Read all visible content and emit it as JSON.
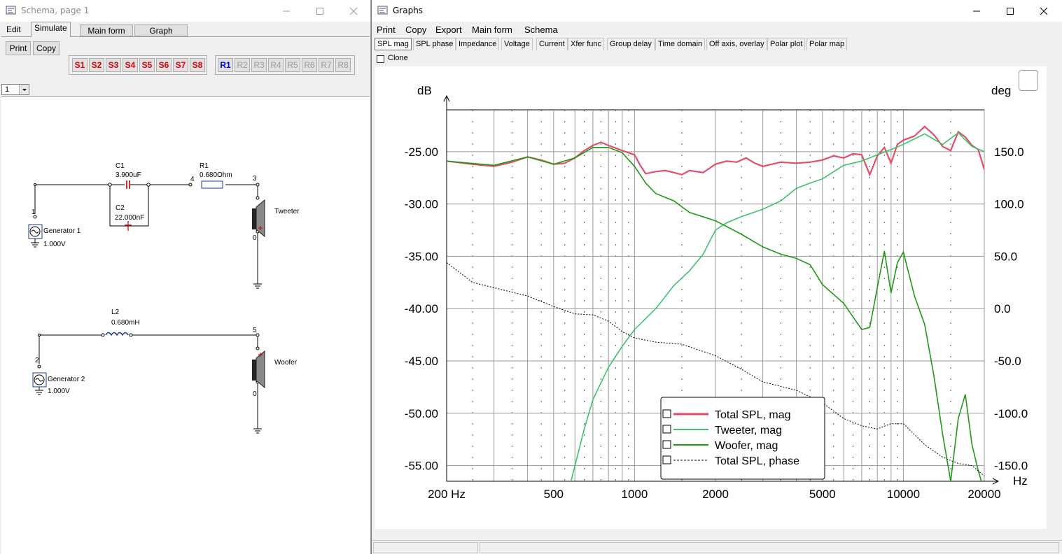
{
  "schema_window": {
    "title": "Schema, page 1",
    "tabs": [
      "Edit",
      "Simulate"
    ],
    "active_tab": "Simulate",
    "buttons": {
      "main_form": "Main form",
      "graph": "Graph",
      "print": "Print",
      "copy": "Copy"
    },
    "s_buttons": [
      "S1",
      "S2",
      "S3",
      "S4",
      "S5",
      "S6",
      "S7",
      "S8"
    ],
    "r_buttons": [
      "R1",
      "R2",
      "R3",
      "R4",
      "R5",
      "R6",
      "R7",
      "R8"
    ],
    "page_select": "1",
    "components": {
      "c1_name": "C1",
      "c1_value": "3.900uF",
      "c2_name": "C2",
      "c2_value": "22.000nF",
      "r1_name": "R1",
      "r1_value": "0.680Ohm",
      "l2_name": "L2",
      "l2_value": "0.680mH",
      "gen1_name": "Generator 1",
      "gen1_value": "1.000V",
      "gen2_name": "Generator 2",
      "gen2_value": "1.000V",
      "tweeter": "Tweeter",
      "woofer": "Woofer"
    },
    "nodes": {
      "n1": "1",
      "n2": "2",
      "n3": "3",
      "n4": "4",
      "n5": "5",
      "n0a": "0",
      "n0b": "0"
    }
  },
  "graphs_window": {
    "title": "Graphs",
    "menu": [
      "Print",
      "Copy",
      "Export",
      "Main form",
      "Schema"
    ],
    "tabs": [
      "SPL mag",
      "SPL phase",
      "Impedance",
      "Voltage",
      "Current",
      "Xfer func",
      "Group delay",
      "Time domain",
      "Off axis, overlay",
      "Polar plot",
      "Polar map"
    ],
    "active_tab": "SPL mag",
    "clone_label": "Clone"
  },
  "chart_data": {
    "type": "line",
    "x_scale": "log",
    "x_unit_label": "Hz",
    "xlim": [
      200,
      20000
    ],
    "x_tick_labels": [
      {
        "v": 200,
        "t": "200 Hz"
      },
      {
        "v": 500,
        "t": "500"
      },
      {
        "v": 1000,
        "t": "1000"
      },
      {
        "v": 2000,
        "t": "2000"
      },
      {
        "v": 5000,
        "t": "5000"
      },
      {
        "v": 10000,
        "t": "10000"
      },
      {
        "v": 20000,
        "t": "20000"
      }
    ],
    "y_left_label": "dB",
    "ylim_left": [
      -56.5,
      -21
    ],
    "y_left_ticks": [
      -25,
      -30,
      -35,
      -40,
      -45,
      -50,
      -55
    ],
    "y_left_tick_labels": [
      "-25.00",
      "-30.00",
      "-35.00",
      "-40.00",
      "-45.00",
      "-50.00",
      "-55.00"
    ],
    "y_right_label": "deg",
    "y_right_ticks": [
      150,
      100,
      50,
      0,
      -50,
      -100,
      -150
    ],
    "y_right_tick_labels": [
      "150.0",
      "100.0",
      "50.0",
      "0.0",
      "-50.0",
      "-100.0",
      "-150.0"
    ],
    "grid": true,
    "legend_position": "bottom-center",
    "series": [
      {
        "name": "Total SPL, mag",
        "color": "#e0506a",
        "axis": "left",
        "points": [
          [
            200,
            -25.9
          ],
          [
            250,
            -26.2
          ],
          [
            300,
            -26.4
          ],
          [
            350,
            -26.0
          ],
          [
            400,
            -25.5
          ],
          [
            450,
            -25.8
          ],
          [
            500,
            -26.2
          ],
          [
            550,
            -26.1
          ],
          [
            600,
            -25.6
          ],
          [
            650,
            -24.9
          ],
          [
            700,
            -24.4
          ],
          [
            750,
            -24.1
          ],
          [
            800,
            -24.4
          ],
          [
            900,
            -24.9
          ],
          [
            1000,
            -25.3
          ],
          [
            1050,
            -26.3
          ],
          [
            1100,
            -27.1
          ],
          [
            1200,
            -26.9
          ],
          [
            1300,
            -26.8
          ],
          [
            1400,
            -27.0
          ],
          [
            1500,
            -27.2
          ],
          [
            1600,
            -26.8
          ],
          [
            1800,
            -27.0
          ],
          [
            2000,
            -26.2
          ],
          [
            2200,
            -25.9
          ],
          [
            2400,
            -26.0
          ],
          [
            2600,
            -25.6
          ],
          [
            2800,
            -26.1
          ],
          [
            3000,
            -26.4
          ],
          [
            3500,
            -26.0
          ],
          [
            4000,
            -26.1
          ],
          [
            4500,
            -26.0
          ],
          [
            5000,
            -25.8
          ],
          [
            5500,
            -25.4
          ],
          [
            6000,
            -25.6
          ],
          [
            6500,
            -25.2
          ],
          [
            7000,
            -25.3
          ],
          [
            7500,
            -27.2
          ],
          [
            8000,
            -25.4
          ],
          [
            8500,
            -24.6
          ],
          [
            9000,
            -26.1
          ],
          [
            9500,
            -24.3
          ],
          [
            10000,
            -23.9
          ],
          [
            11000,
            -23.5
          ],
          [
            12000,
            -22.6
          ],
          [
            13000,
            -23.4
          ],
          [
            14000,
            -24.5
          ],
          [
            15000,
            -24.9
          ],
          [
            16000,
            -23.1
          ],
          [
            17000,
            -23.6
          ],
          [
            18000,
            -24.4
          ],
          [
            19000,
            -24.8
          ],
          [
            20000,
            -26.7
          ]
        ]
      },
      {
        "name": "Tweeter, mag",
        "color": "#3cc36e",
        "axis": "left",
        "points": [
          [
            580,
            -56.5
          ],
          [
            650,
            -51.5
          ],
          [
            700,
            -48.7
          ],
          [
            800,
            -45.6
          ],
          [
            900,
            -43.6
          ],
          [
            1000,
            -42.0
          ],
          [
            1200,
            -40.0
          ],
          [
            1400,
            -37.8
          ],
          [
            1600,
            -36.4
          ],
          [
            1800,
            -34.8
          ],
          [
            2000,
            -32.5
          ],
          [
            2200,
            -31.8
          ],
          [
            2500,
            -31.2
          ],
          [
            3000,
            -30.5
          ],
          [
            3500,
            -29.7
          ],
          [
            4000,
            -28.5
          ],
          [
            4500,
            -28.0
          ],
          [
            5000,
            -27.6
          ],
          [
            6000,
            -26.3
          ],
          [
            7000,
            -25.9
          ],
          [
            8000,
            -25.3
          ],
          [
            9000,
            -24.8
          ],
          [
            10000,
            -24.3
          ],
          [
            12000,
            -23.3
          ],
          [
            14000,
            -24.3
          ],
          [
            16000,
            -23.2
          ],
          [
            18000,
            -24.5
          ],
          [
            20000,
            -25.0
          ]
        ]
      },
      {
        "name": "Woofer, mag",
        "color": "#1e9a14",
        "axis": "left",
        "points": [
          [
            200,
            -25.9
          ],
          [
            300,
            -26.3
          ],
          [
            400,
            -25.5
          ],
          [
            500,
            -26.2
          ],
          [
            600,
            -25.6
          ],
          [
            700,
            -24.6
          ],
          [
            800,
            -24.6
          ],
          [
            900,
            -25.1
          ],
          [
            1000,
            -26.4
          ],
          [
            1100,
            -28.0
          ],
          [
            1200,
            -29.0
          ],
          [
            1400,
            -29.7
          ],
          [
            1600,
            -30.8
          ],
          [
            2000,
            -31.6
          ],
          [
            2500,
            -32.9
          ],
          [
            3000,
            -34.1
          ],
          [
            3500,
            -34.8
          ],
          [
            4000,
            -35.2
          ],
          [
            4500,
            -35.8
          ],
          [
            5000,
            -37.7
          ],
          [
            6000,
            -39.5
          ],
          [
            7000,
            -42.0
          ],
          [
            7500,
            -41.8
          ],
          [
            8000,
            -38.0
          ],
          [
            8500,
            -34.5
          ],
          [
            9000,
            -38.5
          ],
          [
            9500,
            -35.6
          ],
          [
            10000,
            -34.6
          ],
          [
            11000,
            -38.8
          ],
          [
            12000,
            -41.5
          ],
          [
            13000,
            -46.5
          ],
          [
            14000,
            -52.0
          ],
          [
            15000,
            -56.5
          ],
          [
            16000,
            -50.5
          ],
          [
            17000,
            -48.2
          ],
          [
            18000,
            -53.0
          ],
          [
            19000,
            -55.5
          ],
          [
            19500,
            -56.5
          ]
        ]
      },
      {
        "name": "Total SPL, phase",
        "color": "#000000",
        "axis": "right",
        "dashed": true,
        "points": [
          [
            200,
            44
          ],
          [
            250,
            25
          ],
          [
            300,
            20
          ],
          [
            400,
            12
          ],
          [
            500,
            2
          ],
          [
            600,
            -5
          ],
          [
            700,
            -6
          ],
          [
            800,
            -12
          ],
          [
            900,
            -22
          ],
          [
            1000,
            -28
          ],
          [
            1200,
            -32
          ],
          [
            1500,
            -34
          ],
          [
            2000,
            -45
          ],
          [
            2500,
            -58
          ],
          [
            3000,
            -70
          ],
          [
            4000,
            -78
          ],
          [
            5000,
            -90
          ],
          [
            6000,
            -105
          ],
          [
            7000,
            -112
          ],
          [
            8000,
            -115
          ],
          [
            9000,
            -110
          ],
          [
            10000,
            -110
          ],
          [
            12000,
            -130
          ],
          [
            14000,
            -142
          ],
          [
            16000,
            -148
          ],
          [
            18000,
            -150
          ],
          [
            20000,
            -160
          ]
        ]
      }
    ]
  }
}
